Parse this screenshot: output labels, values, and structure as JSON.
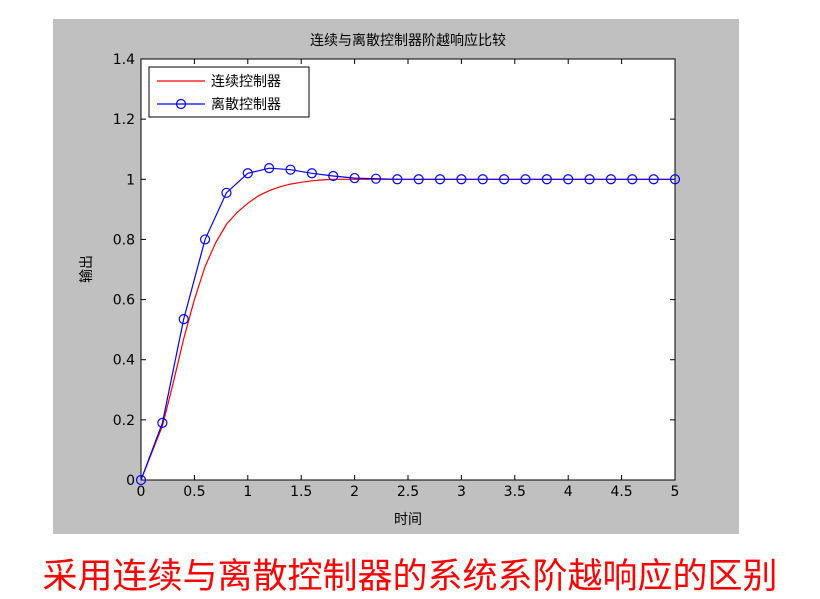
{
  "caption": "采用连续与离散控制器的系统系阶越响应的区别",
  "chart_data": {
    "type": "line",
    "title": "连续与离散控制器阶越响应比较",
    "xlabel": "时间",
    "ylabel": "输出",
    "xlim": [
      0,
      5
    ],
    "ylim": [
      0,
      1.4
    ],
    "xticks": [
      "0",
      "0.5",
      "1",
      "1.5",
      "2",
      "2.5",
      "3",
      "3.5",
      "4",
      "4.5",
      "5"
    ],
    "yticks": [
      "0",
      "0.2",
      "0.4",
      "0.6",
      "0.8",
      "1",
      "1.2",
      "1.4"
    ],
    "grid": false,
    "legend_position": "top-left",
    "series": [
      {
        "name": "连续控制器",
        "color": "#ff0000",
        "marker": "none",
        "x": [
          0,
          0.1,
          0.2,
          0.3,
          0.4,
          0.5,
          0.6,
          0.7,
          0.8,
          0.9,
          1.0,
          1.1,
          1.2,
          1.3,
          1.4,
          1.5,
          1.6,
          1.7,
          1.8,
          1.9,
          2.0,
          2.2,
          2.4,
          2.6,
          2.8,
          3.0,
          3.5,
          4.0,
          4.5,
          5.0
        ],
        "y": [
          0,
          0.09,
          0.18,
          0.32,
          0.47,
          0.6,
          0.71,
          0.79,
          0.85,
          0.89,
          0.92,
          0.945,
          0.962,
          0.975,
          0.984,
          0.99,
          0.995,
          0.998,
          1.0,
          1.0,
          1.0,
          1.0,
          1.0,
          1.0,
          1.0,
          1.0,
          1.0,
          1.0,
          1.0,
          1.0
        ]
      },
      {
        "name": "离散控制器",
        "color": "#0000ff",
        "marker": "circle",
        "x": [
          0,
          0.2,
          0.4,
          0.6,
          0.8,
          1.0,
          1.2,
          1.4,
          1.6,
          1.8,
          2.0,
          2.2,
          2.4,
          2.6,
          2.8,
          3.0,
          3.2,
          3.4,
          3.6,
          3.8,
          4.0,
          4.2,
          4.4,
          4.6,
          4.8,
          5.0
        ],
        "y": [
          0,
          0.19,
          0.535,
          0.8,
          0.955,
          1.02,
          1.037,
          1.032,
          1.02,
          1.011,
          1.004,
          1.002,
          1.0,
          1.0,
          1.0,
          1.0,
          1.0,
          1.0,
          1.0,
          1.0,
          1.0,
          1.0,
          1.0,
          1.0,
          1.0,
          1.0
        ]
      }
    ]
  }
}
